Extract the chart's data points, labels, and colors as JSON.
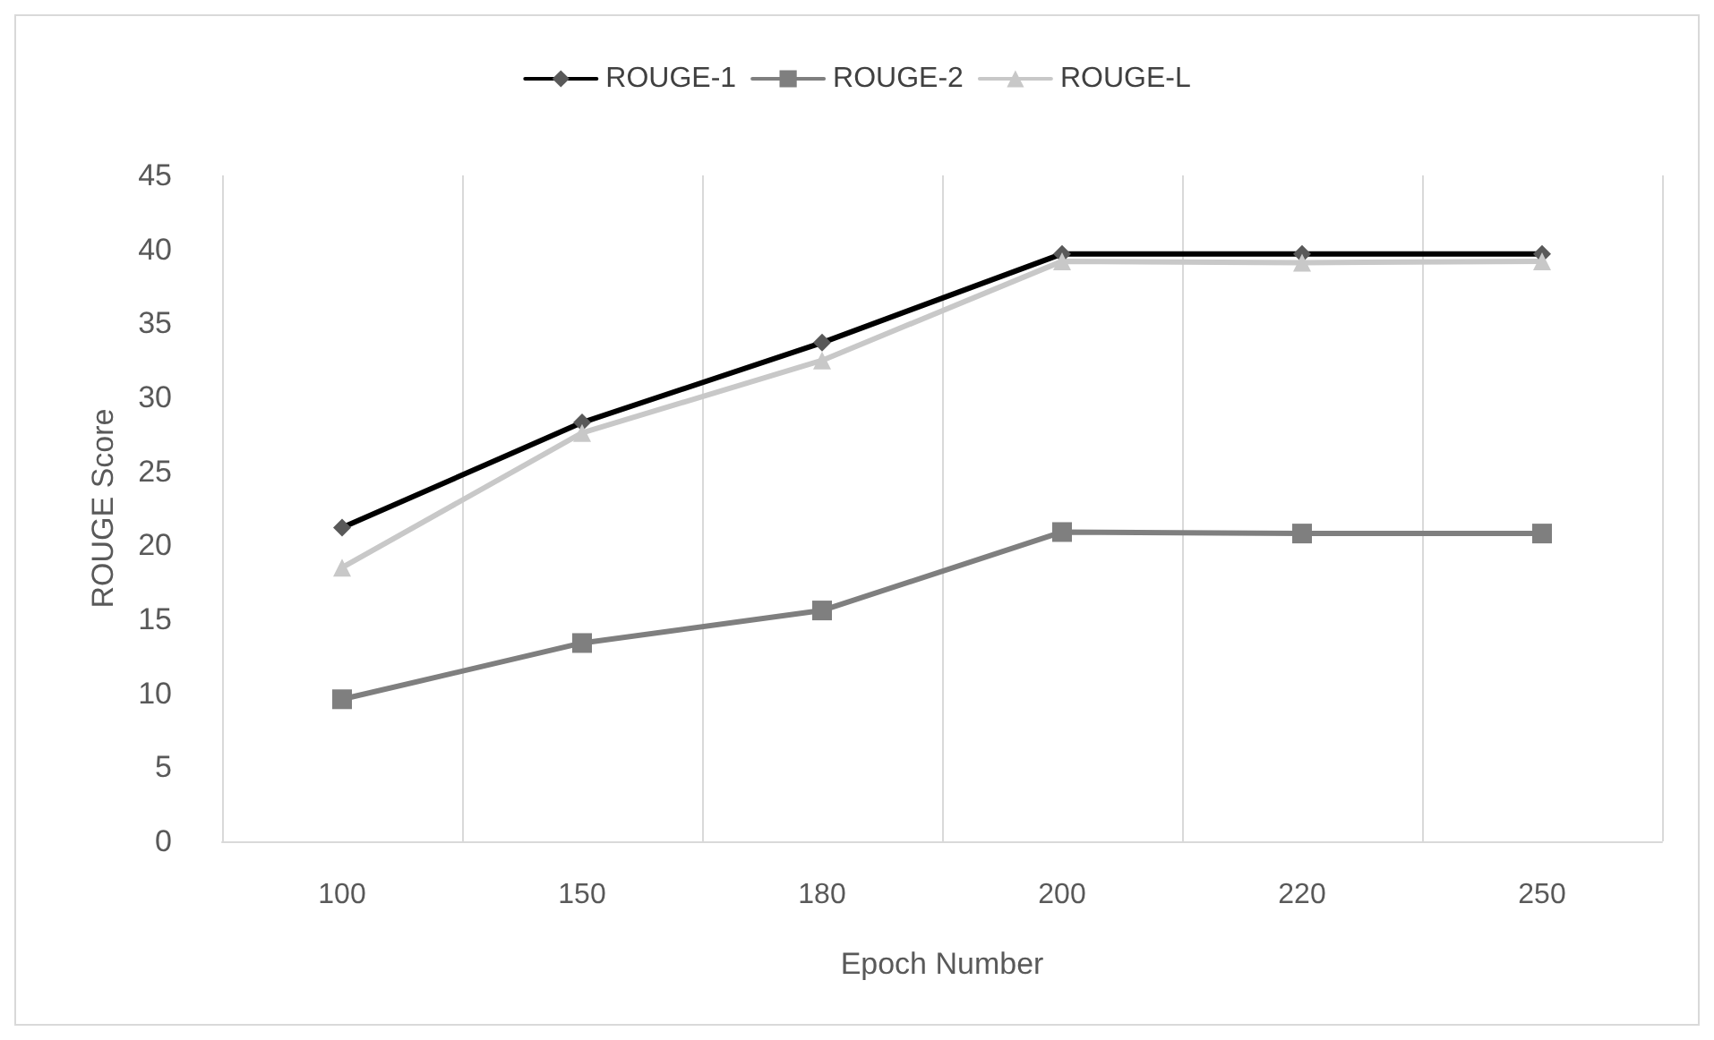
{
  "chart_data": {
    "type": "line",
    "xlabel": "Epoch Number",
    "ylabel": "ROUGE Score",
    "categories": [
      "100",
      "150",
      "180",
      "200",
      "220",
      "250"
    ],
    "series": [
      {
        "name": "ROUGE-1",
        "color": "#000000",
        "marker": "diamond",
        "values": [
          21.2,
          28.3,
          33.7,
          39.7,
          39.7,
          39.7
        ]
      },
      {
        "name": "ROUGE-2",
        "color": "#7f7f7f",
        "marker": "square",
        "values": [
          9.6,
          13.4,
          15.6,
          20.9,
          20.8,
          20.8
        ]
      },
      {
        "name": "ROUGE-L",
        "color": "#c8c8c8",
        "marker": "triangle",
        "values": [
          18.5,
          27.6,
          32.5,
          39.2,
          39.1,
          39.2
        ]
      }
    ],
    "ylim": [
      0,
      45
    ],
    "yticks": [
      0,
      5,
      10,
      15,
      20,
      25,
      30,
      35,
      40,
      45
    ],
    "grid": "x",
    "legend": "top",
    "line_style": "solid"
  }
}
